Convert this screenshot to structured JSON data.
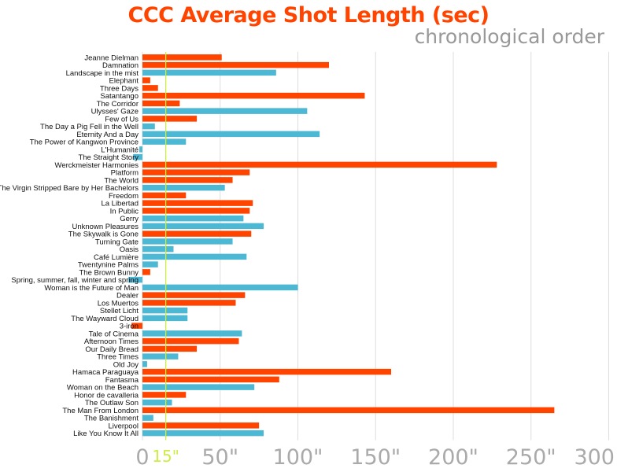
{
  "chart_data": {
    "type": "bar",
    "orientation": "horizontal",
    "title": "CCC Average Shot Length (sec)",
    "subtitle": "chronological order",
    "xlim": [
      0,
      300
    ],
    "xticks": [
      {
        "value": 0,
        "label": "0"
      },
      {
        "value": 50,
        "label": "50\""
      },
      {
        "value": 100,
        "label": "100\""
      },
      {
        "value": 150,
        "label": "150\""
      },
      {
        "value": 200,
        "label": "200\""
      },
      {
        "value": 250,
        "label": "250\""
      },
      {
        "value": 300,
        "label": "300"
      }
    ],
    "reference_line": {
      "value": 15,
      "label": "15\"",
      "color": "#ccee44"
    },
    "grid": true,
    "colors": {
      "orange": "#ff4400",
      "blue": "#4db8d4"
    },
    "categories": [
      "Jeanne Dielman",
      "Damnation",
      "Landscape in the mist",
      "Elephant",
      "Three Days",
      "Satantango",
      "The Corridor",
      "Ulysses' Gaze",
      "Few of Us",
      "The Day a Pig Fell in the Well",
      "Eternity And a Day",
      "The Power of Kangwon Province",
      "L'Humanité",
      "The Straight Story",
      "Werckmeister Harmonies",
      "Platform",
      "The World",
      "The Virgin Stripped Bare by Her Bachelors",
      "Freedom",
      "La Libertad",
      "In Public",
      "Gerry",
      "Unknown Pleasures",
      "The Skywalk is Gone",
      "Turning Gate",
      "Oasis",
      "Café Lumière",
      "Twentynine Palms",
      "The Brown Bunny",
      "Spring, summer, fall, winter and spring",
      "Woman is the Future of Man",
      "Dealer",
      "Los Muertos",
      "Stellet Licht",
      "The Wayward Cloud",
      "3-iron",
      "Tale of Cinema",
      "Afternoon Times",
      "Our Daily Bread",
      "Three Times",
      "Old Joy",
      "Hamaca Paraguaya",
      "Fantasma",
      "Woman on the Beach",
      "Honor de cavalleria",
      "The Outlaw Son",
      "The Man From London",
      "The Banishment",
      "Liverpool",
      "Like You Know It All"
    ],
    "values": [
      51,
      120,
      86,
      5,
      10,
      143,
      24,
      106,
      35,
      8,
      114,
      28,
      -2,
      -6,
      228,
      69,
      58,
      53,
      28,
      71,
      69,
      65,
      78,
      70,
      58,
      20,
      67,
      10,
      5,
      -9,
      100,
      66,
      60,
      29,
      29,
      -7,
      64,
      62,
      35,
      23,
      3,
      160,
      88,
      72,
      28,
      19,
      265,
      7,
      75,
      78
    ],
    "bar_colors": [
      "orange",
      "orange",
      "blue",
      "orange",
      "orange",
      "orange",
      "orange",
      "blue",
      "orange",
      "blue",
      "blue",
      "blue",
      "blue",
      "blue",
      "orange",
      "orange",
      "orange",
      "blue",
      "orange",
      "orange",
      "orange",
      "blue",
      "blue",
      "orange",
      "blue",
      "blue",
      "blue",
      "blue",
      "orange",
      "blue",
      "blue",
      "orange",
      "orange",
      "blue",
      "blue",
      "orange",
      "blue",
      "orange",
      "orange",
      "blue",
      "blue",
      "orange",
      "orange",
      "blue",
      "orange",
      "blue",
      "orange",
      "blue",
      "orange",
      "blue"
    ]
  }
}
